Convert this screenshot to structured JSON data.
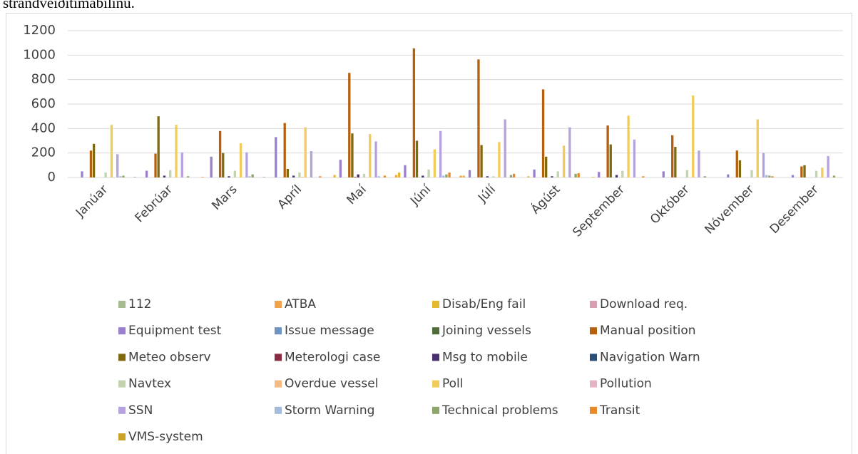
{
  "heading": "strandveiðitímabilinu.",
  "chart_data": {
    "type": "bar",
    "categories": [
      "Janúar",
      "Febrúar",
      "Mars",
      "Apríl",
      "Maí",
      "Júní",
      "Júlí",
      "Ágúst",
      "September",
      "Október",
      "Nóvember",
      "Desember"
    ],
    "ylim": [
      0,
      1200
    ],
    "yticks": [
      0,
      200,
      400,
      600,
      800,
      1000,
      1200
    ],
    "grid": true,
    "legend": "bottom",
    "series": [
      {
        "name": "112",
        "color": "#a7b98f",
        "values": [
          0,
          5,
          0,
          5,
          0,
          0,
          0,
          0,
          0,
          0,
          0,
          0
        ]
      },
      {
        "name": "ATBA",
        "color": "#f2a24a",
        "values": [
          0,
          0,
          5,
          0,
          0,
          20,
          15,
          0,
          0,
          0,
          0,
          0
        ]
      },
      {
        "name": "Disab/Eng fail",
        "color": "#e6b830",
        "values": [
          0,
          0,
          0,
          0,
          20,
          40,
          15,
          10,
          5,
          0,
          0,
          0
        ]
      },
      {
        "name": "Download req.",
        "color": "#d89fb3",
        "values": [
          0,
          0,
          0,
          0,
          0,
          0,
          0,
          0,
          0,
          0,
          0,
          0
        ]
      },
      {
        "name": "Equipment test",
        "color": "#9a7fcf",
        "values": [
          50,
          55,
          170,
          330,
          145,
          100,
          60,
          65,
          45,
          50,
          25,
          20
        ]
      },
      {
        "name": "Issue message",
        "color": "#6f93c4",
        "values": [
          0,
          0,
          0,
          0,
          0,
          0,
          0,
          0,
          0,
          0,
          0,
          0
        ]
      },
      {
        "name": "Joining vessels",
        "color": "#4f6e3b",
        "values": [
          0,
          0,
          0,
          0,
          0,
          0,
          0,
          0,
          0,
          0,
          0,
          0
        ]
      },
      {
        "name": "Manual position",
        "color": "#b5600f",
        "values": [
          220,
          195,
          380,
          445,
          855,
          1055,
          965,
          720,
          425,
          345,
          220,
          90
        ]
      },
      {
        "name": "Meteo observ",
        "color": "#7f6a10",
        "values": [
          275,
          500,
          200,
          70,
          360,
          300,
          265,
          170,
          270,
          250,
          140,
          100
        ]
      },
      {
        "name": "Meterologi case",
        "color": "#8b2a42",
        "values": [
          0,
          0,
          0,
          0,
          5,
          0,
          0,
          0,
          0,
          0,
          0,
          0
        ]
      },
      {
        "name": "Msg to mobile",
        "color": "#4a3072",
        "values": [
          0,
          15,
          10,
          15,
          25,
          15,
          10,
          10,
          20,
          0,
          0,
          0
        ]
      },
      {
        "name": "Navigation Warn",
        "color": "#2c4f7a",
        "values": [
          0,
          0,
          0,
          0,
          0,
          0,
          0,
          0,
          0,
          0,
          0,
          0
        ]
      },
      {
        "name": "Navtex",
        "color": "#c3d3ae",
        "values": [
          40,
          60,
          55,
          40,
          30,
          65,
          10,
          50,
          55,
          60,
          60,
          55
        ]
      },
      {
        "name": "Overdue vessel",
        "color": "#f7b982",
        "values": [
          0,
          0,
          0,
          5,
          0,
          0,
          0,
          0,
          0,
          0,
          0,
          0
        ]
      },
      {
        "name": "Poll",
        "color": "#f1cc5a",
        "values": [
          430,
          430,
          280,
          410,
          355,
          230,
          290,
          260,
          505,
          670,
          475,
          80
        ]
      },
      {
        "name": "Pollution",
        "color": "#e3b3c6",
        "values": [
          0,
          0,
          0,
          0,
          0,
          0,
          0,
          0,
          0,
          0,
          0,
          0
        ]
      },
      {
        "name": "SSN",
        "color": "#b6a2de",
        "values": [
          190,
          205,
          205,
          215,
          295,
          380,
          475,
          410,
          310,
          220,
          200,
          175
        ]
      },
      {
        "name": "Storm Warning",
        "color": "#a3bcdc",
        "values": [
          10,
          0,
          10,
          0,
          10,
          15,
          0,
          0,
          0,
          0,
          20,
          0
        ]
      },
      {
        "name": "Technical problems",
        "color": "#8ba56b",
        "values": [
          15,
          10,
          25,
          0,
          0,
          25,
          20,
          30,
          0,
          10,
          15,
          15
        ]
      },
      {
        "name": "Transit",
        "color": "#e8892a",
        "values": [
          0,
          0,
          0,
          10,
          15,
          40,
          30,
          35,
          10,
          0,
          10,
          0
        ]
      },
      {
        "name": "VMS-system",
        "color": "#c9a227",
        "values": [
          0,
          0,
          0,
          0,
          0,
          0,
          0,
          0,
          0,
          0,
          0,
          0
        ]
      }
    ]
  }
}
